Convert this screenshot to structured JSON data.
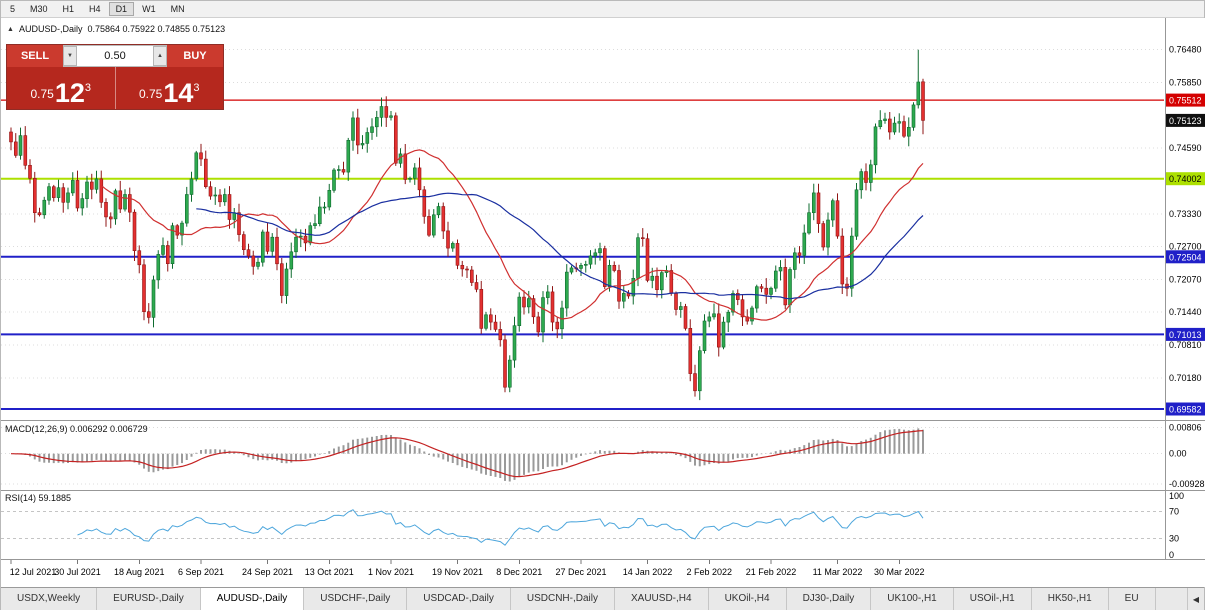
{
  "toolbar": {
    "timeframes": [
      "5",
      "M30",
      "H1",
      "H4",
      "D1",
      "W1",
      "MN"
    ],
    "active": "D1"
  },
  "chart": {
    "symbol_line": {
      "icon": "▲",
      "symbol": "AUDUSD-,Daily",
      "ohlc": "0.75864 0.75922 0.74855 0.75123"
    }
  },
  "trade_panel": {
    "sell_label": "SELL",
    "buy_label": "BUY",
    "volume": "0.50",
    "volume_down_icon": "▼",
    "volume_up_icon": "▲",
    "sell_price": {
      "prefix": "0.75",
      "big": "12",
      "sup": "3"
    },
    "buy_price": {
      "prefix": "0.75",
      "big": "14",
      "sup": "3"
    }
  },
  "chart_data": {
    "type": "candlestick",
    "title": "AUDUSD-,Daily",
    "current": {
      "open": 0.75864,
      "high": 0.75922,
      "low": 0.74855,
      "close": 0.75123
    },
    "first_open": 0.749,
    "closes": [
      0.7471,
      0.7445,
      0.7483,
      0.7426,
      0.7401,
      0.7335,
      0.7331,
      0.7359,
      0.7385,
      0.7364,
      0.7383,
      0.7355,
      0.7373,
      0.7397,
      0.7344,
      0.7362,
      0.7394,
      0.738,
      0.74,
      0.7355,
      0.7327,
      0.7323,
      0.7377,
      0.7342,
      0.737,
      0.7336,
      0.7262,
      0.7235,
      0.7145,
      0.7134,
      0.7206,
      0.7255,
      0.7272,
      0.7237,
      0.731,
      0.7292,
      0.7315,
      0.737,
      0.74,
      0.745,
      0.7438,
      0.7385,
      0.7367,
      0.7369,
      0.7356,
      0.737,
      0.7322,
      0.7335,
      0.7293,
      0.7264,
      0.7252,
      0.7232,
      0.724,
      0.7298,
      0.7261,
      0.7288,
      0.7237,
      0.7176,
      0.7227,
      0.726,
      0.7288,
      0.729,
      0.7277,
      0.731,
      0.7314,
      0.7346,
      0.7346,
      0.7378,
      0.7417,
      0.7418,
      0.7413,
      0.7474,
      0.7517,
      0.7465,
      0.7468,
      0.7489,
      0.75,
      0.7518,
      0.7539,
      0.7518,
      0.7521,
      0.743,
      0.7448,
      0.7399,
      0.7401,
      0.7421,
      0.7379,
      0.7328,
      0.7292,
      0.7331,
      0.7347,
      0.73,
      0.7267,
      0.7276,
      0.7234,
      0.7227,
      0.7225,
      0.7201,
      0.7188,
      0.7113,
      0.7139,
      0.7125,
      0.7111,
      0.7091,
      0.7,
      0.7052,
      0.7118,
      0.7173,
      0.7154,
      0.717,
      0.7135,
      0.7106,
      0.7172,
      0.7183,
      0.7125,
      0.7112,
      0.7152,
      0.7221,
      0.7229,
      0.7228,
      0.7234,
      0.7236,
      0.7252,
      0.7258,
      0.7266,
      0.7193,
      0.7234,
      0.7224,
      0.7165,
      0.718,
      0.7175,
      0.7209,
      0.7287,
      0.7285,
      0.7205,
      0.7213,
      0.7187,
      0.722,
      0.7224,
      0.718,
      0.7149,
      0.7155,
      0.7113,
      0.7026,
      0.6993,
      0.707,
      0.7127,
      0.7135,
      0.7141,
      0.7077,
      0.7125,
      0.7144,
      0.718,
      0.7168,
      0.7135,
      0.7127,
      0.7152,
      0.7193,
      0.719,
      0.7178,
      0.719,
      0.7223,
      0.723,
      0.7158,
      0.7226,
      0.7258,
      0.7253,
      0.7296,
      0.7335,
      0.7373,
      0.7314,
      0.7269,
      0.7321,
      0.7358,
      0.729,
      0.7198,
      0.719,
      0.729,
      0.7379,
      0.7414,
      0.7393,
      0.7427,
      0.75,
      0.7512,
      0.7515,
      0.749,
      0.7507,
      0.751,
      0.7482,
      0.7499,
      0.7542,
      0.7586,
      0.7512
    ],
    "overrides": {
      "191": {
        "high": 0.7648,
        "low": 0.7535
      },
      "192": {
        "open": 0.75864,
        "high": 0.75922,
        "low": 0.74855,
        "close": 0.75123
      }
    },
    "x_labels": [
      {
        "t": "12 Jul 2021",
        "i": 0
      },
      {
        "t": "30 Jul 2021",
        "i": 14
      },
      {
        "t": "18 Aug 2021",
        "i": 27
      },
      {
        "t": "6 Sep 2021",
        "i": 40
      },
      {
        "t": "24 Sep 2021",
        "i": 54
      },
      {
        "t": "13 Oct 2021",
        "i": 67
      },
      {
        "t": "1 Nov 2021",
        "i": 80
      },
      {
        "t": "19 Nov 2021",
        "i": 94
      },
      {
        "t": "8 Dec 2021",
        "i": 107
      },
      {
        "t": "27 Dec 2021",
        "i": 120
      },
      {
        "t": "14 Jan 2022",
        "i": 134
      },
      {
        "t": "2 Feb 2022",
        "i": 147
      },
      {
        "t": "21 Feb 2022",
        "i": 160
      },
      {
        "t": "11 Mar 2022",
        "i": 174
      },
      {
        "t": "30 Mar 2022",
        "i": 187
      }
    ],
    "y_axis": {
      "min": 0.6937,
      "max": 0.7705,
      "labels": [
        0.7648,
        0.7585,
        0.7459,
        0.7333,
        0.727,
        0.7207,
        0.7144,
        0.7081,
        0.7018
      ]
    },
    "hlines": [
      {
        "value": 0.75512,
        "color": "#D40000",
        "width": 1.2
      },
      {
        "value": 0.74002,
        "color": "#ADE000",
        "width": 2
      },
      {
        "value": 0.72504,
        "color": "#2020C8",
        "width": 2
      },
      {
        "value": 0.71013,
        "color": "#2020C8",
        "width": 2
      },
      {
        "value": 0.69582,
        "color": "#2020C8",
        "width": 2
      }
    ],
    "badges": [
      {
        "value": 0.75512,
        "bg": "#D40000",
        "fg": "#ffffff"
      },
      {
        "value": 0.74002,
        "bg": "#ADE000",
        "fg": "#000000"
      },
      {
        "value": 0.72504,
        "bg": "#2020C8",
        "fg": "#ffffff"
      },
      {
        "value": 0.71013,
        "bg": "#2020C8",
        "fg": "#ffffff"
      },
      {
        "value": 0.69582,
        "bg": "#2020C8",
        "fg": "#ffffff"
      }
    ],
    "current_badge": {
      "bg": "#101010",
      "fg": "#ffffff"
    },
    "ma": [
      {
        "period": 20,
        "color": "#D03030"
      },
      {
        "period": 40,
        "color": "#1A2FA0"
      }
    ],
    "macd": {
      "title": "MACD(12,26,9)",
      "values_text": "0.006292 0.006729",
      "fast": 12,
      "slow": 26,
      "signal": 9,
      "axis": [
        {
          "v": 0.00806,
          "t": "0.00806"
        },
        {
          "v": 0,
          "t": "0.00"
        },
        {
          "v": -0.00928,
          "t": "-0.00928"
        }
      ],
      "hist_color": "#9a9a9a",
      "signal_color": "#C42222"
    },
    "rsi": {
      "title": "RSI(14)",
      "value_text": "59.1885",
      "period": 14,
      "levels": [
        {
          "v": 100,
          "t": "100"
        },
        {
          "v": 70,
          "t": "70",
          "dashed": true
        },
        {
          "v": 30,
          "t": "30",
          "dashed": true
        },
        {
          "v": 0,
          "t": "0"
        }
      ],
      "color": "#4DA6DC"
    },
    "colors": {
      "up": "#2EA94F",
      "up_border": "#0E6B2F",
      "down": "#E33030",
      "down_border": "#8F1515",
      "grid": "#dcdcdc",
      "separator": "#979797",
      "tick": "#777777"
    }
  },
  "tabs": {
    "items": [
      "USDX,Weekly",
      "EURUSD-,Daily",
      "AUDUSD-,Daily",
      "USDCHF-,Daily",
      "USDCAD-,Daily",
      "USDCNH-,Daily",
      "XAUUSD-,H4",
      "UKOil-,H4",
      "DJ30-,Daily",
      "UK100-,H1",
      "USOil-,H1",
      "HK50-,H1",
      "EU"
    ],
    "active_index": 2,
    "scroll_icon": "◀"
  }
}
